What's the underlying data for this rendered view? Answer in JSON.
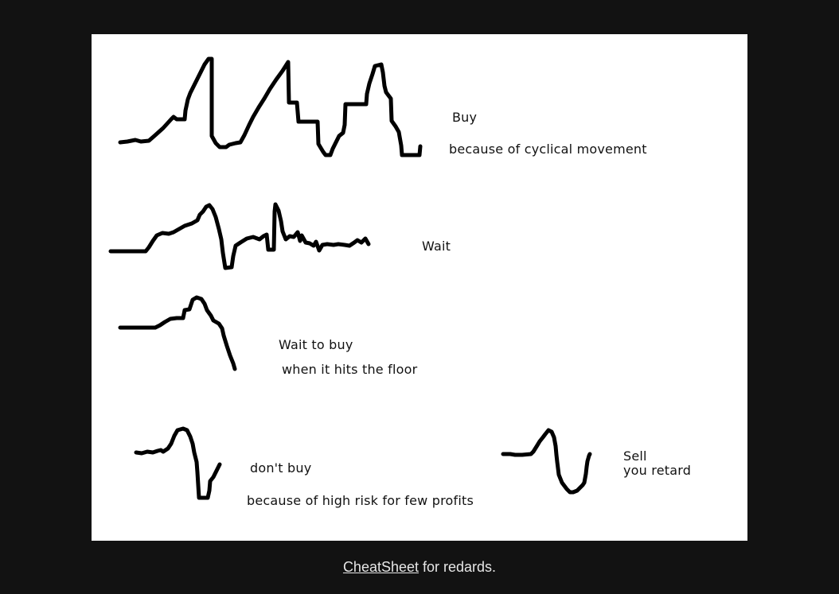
{
  "image": {
    "labels": {
      "buy": "Buy",
      "buy_reason": "because of cyclical movement",
      "wait": "Wait",
      "wait_to_buy": "Wait to buy",
      "wait_to_buy_reason": "when it hits the floor",
      "dont_buy": "don't buy",
      "dont_buy_reason": "because of high risk for few profits",
      "sell": "Sell",
      "sell_reason": "you retard"
    }
  },
  "caption": {
    "link_text": "CheatSheet",
    "rest_text": " for redards."
  },
  "colors": {
    "page_background": "#121212",
    "canvas_background": "#ffffff",
    "stroke": "#000000",
    "caption_text": "#e6e6e6"
  }
}
